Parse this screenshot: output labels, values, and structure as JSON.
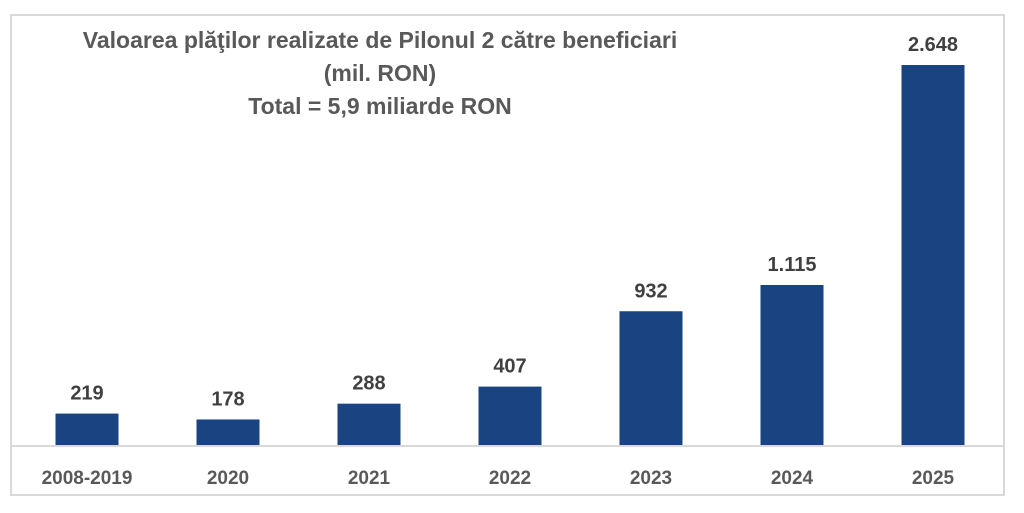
{
  "chart_data": {
    "type": "bar",
    "title_lines": [
      "Valoarea plăţilor realizate de Pilonul 2 către beneficiari",
      "(mil. RON)",
      "Total = 5,9 miliarde RON"
    ],
    "categories": [
      "2008-2019",
      "2020",
      "2021",
      "2022",
      "2023",
      "2024",
      "2025"
    ],
    "values": [
      219,
      178,
      288,
      407,
      932,
      1115,
      2648
    ],
    "data_labels": [
      "219",
      "178",
      "288",
      "407",
      "932",
      "1.115",
      "2.648"
    ],
    "xlabel": "",
    "ylabel": "",
    "ylim": [
      0,
      2648
    ],
    "grid": false,
    "bar_color": "#1A4381"
  }
}
